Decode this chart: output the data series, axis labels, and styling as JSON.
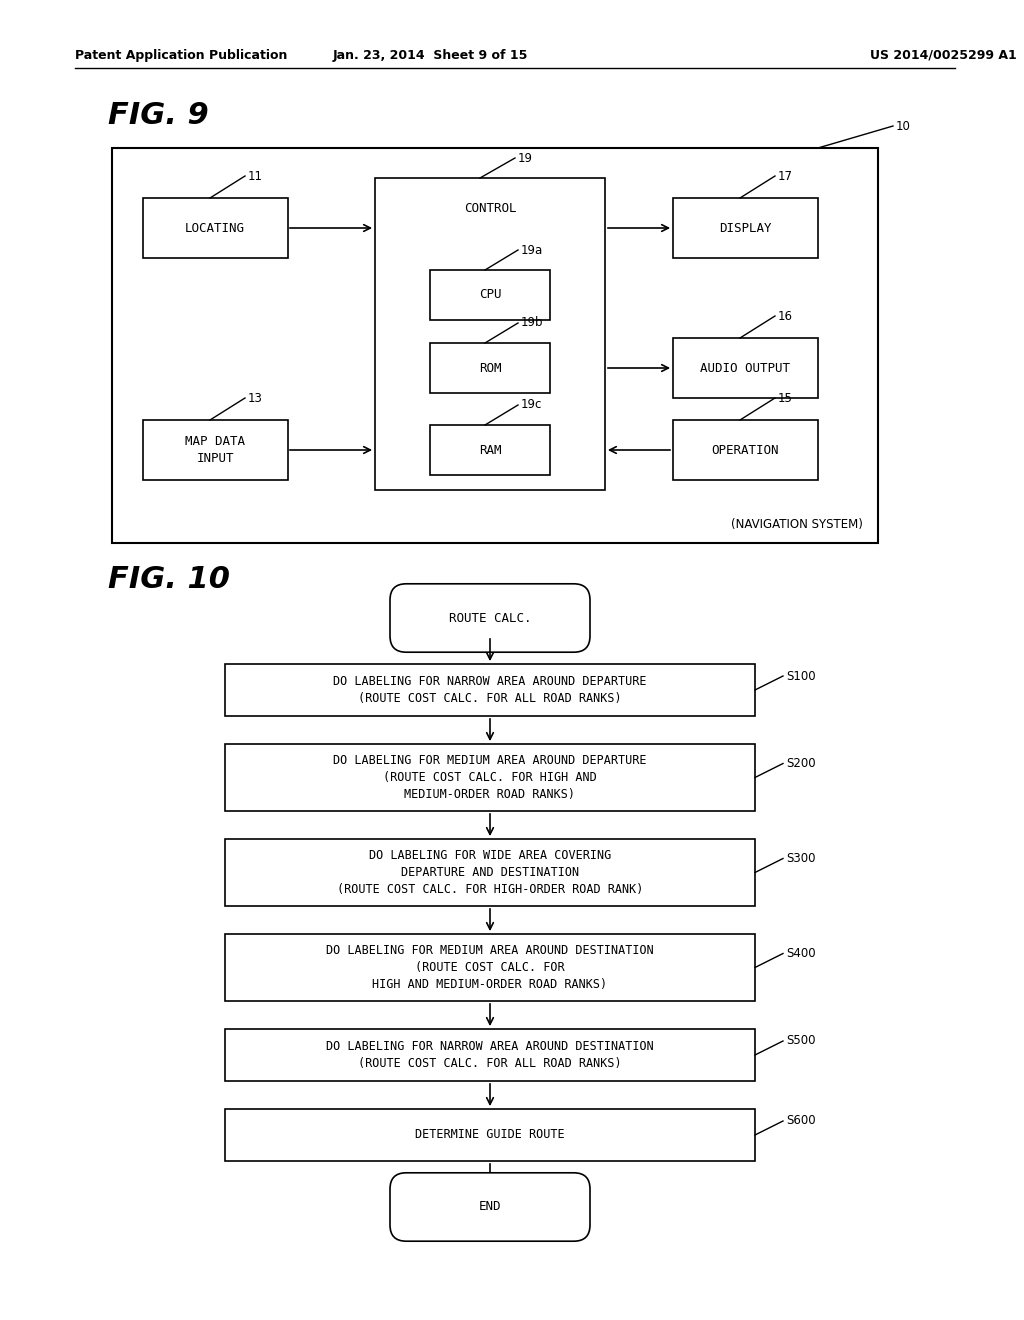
{
  "bg_color": "#ffffff",
  "header_left": "Patent Application Publication",
  "header_mid": "Jan. 23, 2014  Sheet 9 of 15",
  "header_right": "US 2014/0025299 A1",
  "fig9_label": "FIG. 9",
  "fig10_label": "FIG. 10"
}
